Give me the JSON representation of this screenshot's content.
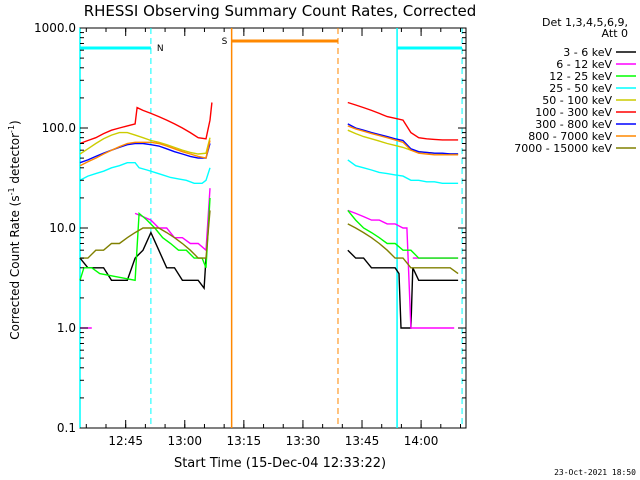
{
  "chart_data": {
    "type": "line",
    "title": "RHESSI Observing Summary Count Rates, Corrected",
    "xlabel": "Start Time (15-Dec-04 12:33:22)",
    "ylabel_main": "Corrected Count Rate (s",
    "ylabel_sup1": "-1",
    "ylabel_mid": " detector",
    "ylabel_sup2": "-1",
    "ylabel_end": ")",
    "yscale": "log",
    "ylim": [
      0.1,
      1000
    ],
    "xlim_minutes": [
      0,
      98
    ],
    "x_ticks": [
      {
        "label": "12:45",
        "min": 11.6
      },
      {
        "label": "13:00",
        "min": 26.6
      },
      {
        "label": "13:15",
        "min": 41.6
      },
      {
        "label": "13:30",
        "min": 56.6
      },
      {
        "label": "13:45",
        "min": 71.6
      },
      {
        "label": "14:00",
        "min": 86.6
      }
    ],
    "y_ticks": [
      {
        "label": "0.1",
        "v": 0.1
      },
      {
        "label": "1.0",
        "v": 1
      },
      {
        "label": "10.0",
        "v": 10
      },
      {
        "label": "100.0",
        "v": 100
      },
      {
        "label": "1000.0",
        "v": 1000
      }
    ],
    "legend_header": [
      "Det 1,3,4,5,6,9,",
      "Att 0"
    ],
    "series": [
      {
        "name": "3 - 6 keV",
        "color": "#000000",
        "points": [
          [
            0,
            5
          ],
          [
            2,
            4
          ],
          [
            4,
            4
          ],
          [
            6,
            4
          ],
          [
            8,
            3
          ],
          [
            10,
            3
          ],
          [
            12,
            3
          ],
          [
            14,
            5
          ],
          [
            16,
            6
          ],
          [
            18,
            9
          ],
          [
            20,
            6
          ],
          [
            22,
            4
          ],
          [
            24,
            4
          ],
          [
            26,
            3
          ],
          [
            28,
            3
          ],
          [
            30,
            3
          ],
          [
            31.5,
            2.5
          ],
          [
            32,
            5
          ],
          [
            null,
            null
          ],
          [
            68,
            6
          ],
          [
            70,
            5
          ],
          [
            72,
            5
          ],
          [
            74,
            4
          ],
          [
            76,
            4
          ],
          [
            78,
            4
          ],
          [
            80,
            4
          ],
          [
            81,
            3.5
          ],
          [
            81.5,
            1
          ],
          [
            84,
            1
          ],
          [
            84.5,
            4
          ],
          [
            86,
            3
          ],
          [
            88,
            3
          ],
          [
            90,
            3
          ],
          [
            92,
            3
          ],
          [
            94,
            3
          ],
          [
            96,
            3
          ]
        ]
      },
      {
        "name": "6 - 12 keV",
        "color": "#ff00ff",
        "points": [
          [
            0,
            1
          ],
          [
            3,
            1
          ],
          [
            null,
            null
          ],
          [
            14,
            14
          ],
          [
            16,
            13
          ],
          [
            18,
            12
          ],
          [
            20,
            10
          ],
          [
            22,
            10
          ],
          [
            24,
            8
          ],
          [
            26,
            8
          ],
          [
            28,
            7
          ],
          [
            30,
            7
          ],
          [
            32,
            6
          ],
          [
            33,
            25
          ],
          [
            null,
            null
          ],
          [
            68,
            15
          ],
          [
            70,
            14
          ],
          [
            72,
            13
          ],
          [
            74,
            12
          ],
          [
            76,
            12
          ],
          [
            78,
            11
          ],
          [
            80,
            11
          ],
          [
            82,
            10
          ],
          [
            83,
            10
          ],
          [
            84,
            1
          ],
          [
            95,
            1
          ],
          [
            null,
            null
          ],
          [
            84.5,
            5
          ],
          [
            86,
            5
          ],
          [
            88,
            5
          ],
          [
            90,
            5
          ],
          [
            92,
            5
          ],
          [
            94,
            5
          ],
          [
            96,
            5
          ]
        ]
      },
      {
        "name": "12 - 25 keV",
        "color": "#00ff00",
        "points": [
          [
            0,
            3
          ],
          [
            1,
            4
          ],
          [
            3,
            4
          ],
          [
            5,
            3.5
          ],
          [
            14,
            3
          ],
          [
            15,
            14
          ],
          [
            17,
            12
          ],
          [
            19,
            10
          ],
          [
            21,
            8
          ],
          [
            23,
            7
          ],
          [
            25,
            6
          ],
          [
            27,
            6
          ],
          [
            29,
            5
          ],
          [
            31,
            5
          ],
          [
            32,
            4
          ],
          [
            33,
            20
          ],
          [
            null,
            null
          ],
          [
            68,
            15
          ],
          [
            70,
            12
          ],
          [
            72,
            10
          ],
          [
            74,
            9
          ],
          [
            76,
            8
          ],
          [
            78,
            7
          ],
          [
            80,
            7
          ],
          [
            82,
            6
          ],
          [
            84,
            6
          ],
          [
            86,
            5
          ],
          [
            88,
            5
          ],
          [
            90,
            5
          ],
          [
            92,
            5
          ],
          [
            94,
            5
          ],
          [
            96,
            5
          ]
        ]
      },
      {
        "name": "25 - 50 keV",
        "color": "#00ffff",
        "points": [
          [
            0,
            30
          ],
          [
            2,
            33
          ],
          [
            4,
            35
          ],
          [
            6,
            37
          ],
          [
            8,
            40
          ],
          [
            10,
            42
          ],
          [
            12,
            45
          ],
          [
            14,
            45
          ],
          [
            15,
            40
          ],
          [
            17,
            38
          ],
          [
            19,
            36
          ],
          [
            21,
            34
          ],
          [
            23,
            32
          ],
          [
            25,
            31
          ],
          [
            27,
            30
          ],
          [
            29,
            28
          ],
          [
            31,
            28
          ],
          [
            32,
            30
          ],
          [
            33,
            40
          ],
          [
            null,
            null
          ],
          [
            68,
            48
          ],
          [
            70,
            42
          ],
          [
            72,
            40
          ],
          [
            74,
            38
          ],
          [
            76,
            36
          ],
          [
            78,
            35
          ],
          [
            80,
            34
          ],
          [
            82,
            33
          ],
          [
            84,
            30
          ],
          [
            86,
            30
          ],
          [
            88,
            29
          ],
          [
            90,
            29
          ],
          [
            92,
            28
          ],
          [
            94,
            28
          ],
          [
            96,
            28
          ]
        ]
      },
      {
        "name": "50 - 100 keV",
        "color": "#cccc00",
        "points": [
          [
            0,
            55
          ],
          [
            2,
            62
          ],
          [
            4,
            70
          ],
          [
            6,
            78
          ],
          [
            8,
            85
          ],
          [
            10,
            90
          ],
          [
            12,
            90
          ],
          [
            14,
            85
          ],
          [
            16,
            80
          ],
          [
            18,
            75
          ],
          [
            20,
            72
          ],
          [
            22,
            68
          ],
          [
            24,
            64
          ],
          [
            26,
            60
          ],
          [
            28,
            57
          ],
          [
            30,
            55
          ],
          [
            32,
            56
          ],
          [
            33,
            80
          ],
          [
            null,
            null
          ],
          [
            68,
            95
          ],
          [
            70,
            88
          ],
          [
            72,
            82
          ],
          [
            74,
            78
          ],
          [
            76,
            74
          ],
          [
            78,
            70
          ],
          [
            80,
            67
          ],
          [
            82,
            64
          ],
          [
            84,
            60
          ],
          [
            86,
            58
          ],
          [
            88,
            57
          ],
          [
            90,
            56
          ],
          [
            92,
            55
          ],
          [
            94,
            55
          ],
          [
            96,
            55
          ]
        ]
      },
      {
        "name": "100 - 300 keV",
        "color": "#ff0000",
        "points": [
          [
            0,
            70
          ],
          [
            2,
            75
          ],
          [
            4,
            80
          ],
          [
            6,
            88
          ],
          [
            8,
            95
          ],
          [
            10,
            100
          ],
          [
            12,
            105
          ],
          [
            14,
            110
          ],
          [
            14.5,
            160
          ],
          [
            16,
            150
          ],
          [
            18,
            140
          ],
          [
            20,
            130
          ],
          [
            22,
            120
          ],
          [
            24,
            110
          ],
          [
            26,
            100
          ],
          [
            28,
            90
          ],
          [
            30,
            80
          ],
          [
            32,
            78
          ],
          [
            33,
            120
          ],
          [
            33.5,
            180
          ],
          [
            null,
            null
          ],
          [
            68,
            180
          ],
          [
            70,
            170
          ],
          [
            72,
            160
          ],
          [
            74,
            150
          ],
          [
            76,
            140
          ],
          [
            78,
            130
          ],
          [
            80,
            125
          ],
          [
            82,
            120
          ],
          [
            84,
            90
          ],
          [
            86,
            80
          ],
          [
            88,
            78
          ],
          [
            90,
            77
          ],
          [
            92,
            76
          ],
          [
            94,
            76
          ],
          [
            96,
            76
          ]
        ]
      },
      {
        "name": "300 - 800 keV",
        "color": "#0000ff",
        "points": [
          [
            0,
            45
          ],
          [
            2,
            48
          ],
          [
            4,
            52
          ],
          [
            6,
            56
          ],
          [
            8,
            60
          ],
          [
            10,
            64
          ],
          [
            12,
            68
          ],
          [
            14,
            70
          ],
          [
            16,
            70
          ],
          [
            18,
            68
          ],
          [
            20,
            66
          ],
          [
            22,
            62
          ],
          [
            24,
            58
          ],
          [
            26,
            55
          ],
          [
            28,
            52
          ],
          [
            30,
            50
          ],
          [
            32,
            50
          ],
          [
            33,
            70
          ],
          [
            null,
            null
          ],
          [
            68,
            110
          ],
          [
            70,
            100
          ],
          [
            72,
            95
          ],
          [
            74,
            90
          ],
          [
            76,
            86
          ],
          [
            78,
            82
          ],
          [
            80,
            78
          ],
          [
            82,
            75
          ],
          [
            84,
            62
          ],
          [
            86,
            58
          ],
          [
            88,
            57
          ],
          [
            90,
            56
          ],
          [
            92,
            56
          ],
          [
            94,
            55
          ],
          [
            96,
            55
          ]
        ]
      },
      {
        "name": "800 - 7000 keV",
        "color": "#ff8800",
        "points": [
          [
            0,
            42
          ],
          [
            2,
            46
          ],
          [
            4,
            50
          ],
          [
            6,
            55
          ],
          [
            8,
            60
          ],
          [
            10,
            65
          ],
          [
            12,
            70
          ],
          [
            14,
            72
          ],
          [
            16,
            72
          ],
          [
            18,
            72
          ],
          [
            20,
            70
          ],
          [
            22,
            66
          ],
          [
            24,
            62
          ],
          [
            26,
            58
          ],
          [
            28,
            55
          ],
          [
            30,
            52
          ],
          [
            32,
            50
          ],
          [
            33,
            75
          ],
          [
            null,
            null
          ],
          [
            68,
            105
          ],
          [
            70,
            98
          ],
          [
            72,
            93
          ],
          [
            74,
            88
          ],
          [
            76,
            84
          ],
          [
            78,
            80
          ],
          [
            80,
            76
          ],
          [
            82,
            72
          ],
          [
            84,
            60
          ],
          [
            86,
            56
          ],
          [
            88,
            55
          ],
          [
            90,
            54
          ],
          [
            92,
            54
          ],
          [
            94,
            54
          ],
          [
            96,
            54
          ]
        ]
      },
      {
        "name": "7000 - 15000 keV",
        "color": "#808000",
        "points": [
          [
            0,
            5
          ],
          [
            2,
            5
          ],
          [
            4,
            6
          ],
          [
            6,
            6
          ],
          [
            8,
            7
          ],
          [
            10,
            7
          ],
          [
            12,
            8
          ],
          [
            14,
            9
          ],
          [
            16,
            10
          ],
          [
            18,
            10
          ],
          [
            20,
            10
          ],
          [
            22,
            9
          ],
          [
            24,
            8
          ],
          [
            26,
            7
          ],
          [
            28,
            6
          ],
          [
            30,
            5
          ],
          [
            32,
            5
          ],
          [
            33,
            15
          ],
          [
            null,
            null
          ],
          [
            68,
            11
          ],
          [
            70,
            10
          ],
          [
            72,
            9
          ],
          [
            74,
            8
          ],
          [
            76,
            7
          ],
          [
            78,
            6
          ],
          [
            80,
            5
          ],
          [
            82,
            5
          ],
          [
            84,
            4
          ],
          [
            86,
            4
          ],
          [
            88,
            4
          ],
          [
            90,
            4
          ],
          [
            92,
            4
          ],
          [
            94,
            4
          ],
          [
            96,
            3.5
          ]
        ]
      }
    ],
    "markers": [
      {
        "label": "N",
        "kind": "night",
        "color": "#00ffff",
        "start": 0,
        "end": 18
      },
      {
        "label": "S",
        "kind": "saa",
        "color": "#ff8800",
        "start": 38.5,
        "end": 65.5
      },
      {
        "label": "",
        "kind": "night",
        "color": "#00ffff",
        "start": 80.5,
        "end": 97
      }
    ]
  },
  "footer_timestamp": "23-Oct-2021 18:50"
}
